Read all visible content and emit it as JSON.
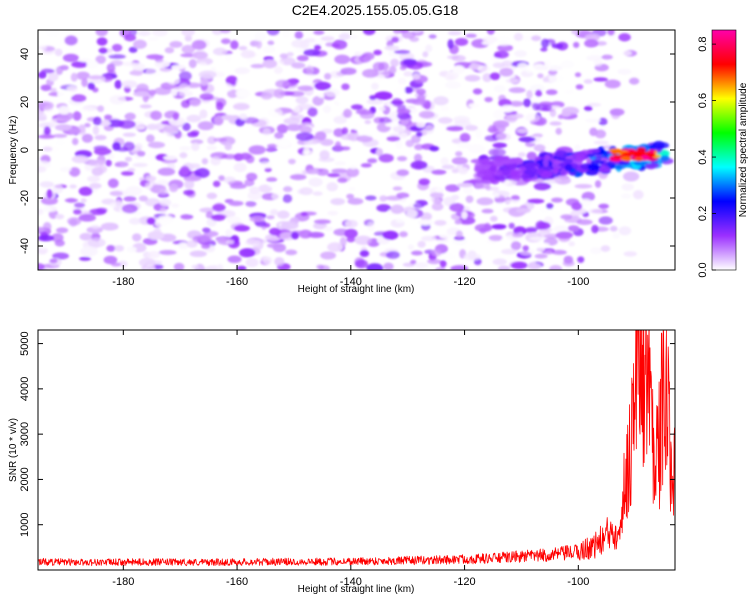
{
  "title": "C2E4.2025.155.05.05.G18",
  "chart_data": [
    {
      "type": "heatmap",
      "xlabel": "Height of straight line (km)",
      "ylabel": "Frequency (Hz)",
      "xlim": [
        -195,
        -83
      ],
      "ylim": [
        -50,
        50
      ],
      "xticks": [
        -180,
        -160,
        -140,
        -120,
        -100
      ],
      "yticks": [
        -40,
        -20,
        0,
        20,
        40
      ],
      "colorbar": {
        "label": "Normalized spectral amplitude",
        "range": [
          0.0,
          0.85
        ],
        "ticks": [
          0.0,
          0.2,
          0.4,
          0.6,
          0.8
        ],
        "colormap": [
          "#ffffff",
          "#9b30ff",
          "#0000ff",
          "#00ffff",
          "#00ff00",
          "#ffff00",
          "#ff0000",
          "#ff00aa"
        ]
      },
      "features": [
        {
          "region": "noise",
          "x": [
            -195,
            -105
          ],
          "y": [
            -50,
            50
          ],
          "amplitude": [
            0.0,
            0.15
          ]
        },
        {
          "region": "signal band",
          "x": [
            -118,
            -84
          ],
          "y": [
            -15,
            3
          ],
          "amplitude": [
            0.1,
            0.45
          ]
        },
        {
          "region": "signal peak",
          "x": [
            -94,
            -86
          ],
          "y": [
            -4,
            0
          ],
          "amplitude": [
            0.6,
            0.85
          ]
        }
      ],
      "grid": false
    },
    {
      "type": "line",
      "xlabel": "Height of straight line (km)",
      "ylabel": "SNR (10 * v/v)",
      "xlim": [
        -195,
        -83
      ],
      "ylim": [
        0,
        5300
      ],
      "xticks": [
        -180,
        -160,
        -140,
        -120,
        -100
      ],
      "yticks": [
        1000,
        2000,
        3000,
        4000,
        5000
      ],
      "series": [
        {
          "color": "#ff0000",
          "x": [
            -195,
            -185,
            -175,
            -165,
            -155,
            -145,
            -135,
            -125,
            -115,
            -110,
            -105,
            -100,
            -97,
            -95,
            -93,
            -92,
            -91,
            -90,
            -89,
            -88,
            -87,
            -86,
            -85,
            -84,
            -83
          ],
          "y": [
            180,
            170,
            175,
            170,
            180,
            185,
            200,
            220,
            260,
            300,
            330,
            400,
            550,
            750,
            1000,
            1700,
            2600,
            4000,
            5200,
            4300,
            3300,
            2500,
            4000,
            3000,
            2300
          ]
        }
      ],
      "grid": false
    }
  ]
}
